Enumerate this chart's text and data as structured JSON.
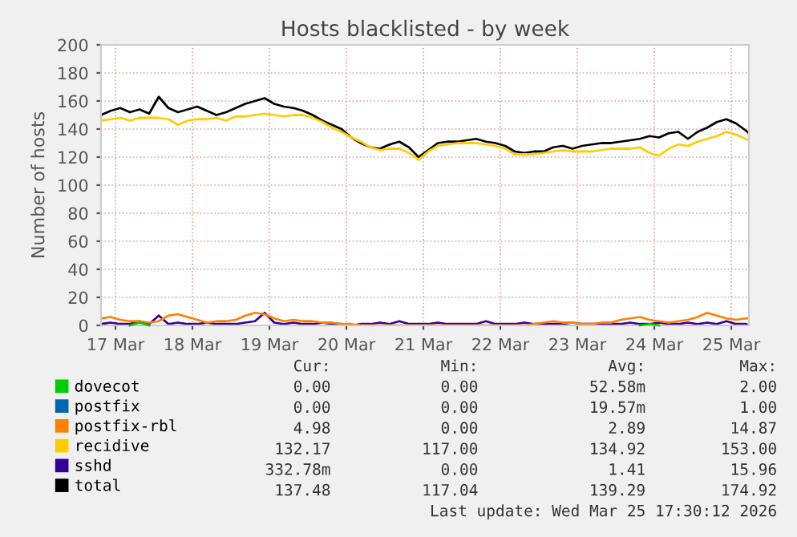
{
  "chart_data": {
    "type": "line",
    "title": "Hosts blacklisted - by week",
    "ylabel": "Number of hosts",
    "x": [
      "2026-03-17T07:30",
      "2026-03-17T10:30",
      "2026-03-17T13:30",
      "2026-03-17T16:30",
      "2026-03-17T19:30",
      "2026-03-17T22:30",
      "2026-03-18T01:30",
      "2026-03-18T04:30",
      "2026-03-18T07:30",
      "2026-03-18T10:30",
      "2026-03-18T13:30",
      "2026-03-18T16:30",
      "2026-03-18T19:30",
      "2026-03-18T22:30",
      "2026-03-19T01:30",
      "2026-03-19T04:30",
      "2026-03-19T07:30",
      "2026-03-19T10:30",
      "2026-03-19T13:30",
      "2026-03-19T16:30",
      "2026-03-19T19:30",
      "2026-03-19T22:30",
      "2026-03-20T01:30",
      "2026-03-20T04:30",
      "2026-03-20T07:30",
      "2026-03-20T10:30",
      "2026-03-20T13:30",
      "2026-03-20T16:30",
      "2026-03-20T19:30",
      "2026-03-20T22:30",
      "2026-03-21T01:30",
      "2026-03-21T04:30",
      "2026-03-21T07:30",
      "2026-03-21T10:30",
      "2026-03-21T13:30",
      "2026-03-21T16:30",
      "2026-03-21T19:30",
      "2026-03-21T22:30",
      "2026-03-22T01:30",
      "2026-03-22T04:30",
      "2026-03-22T07:30",
      "2026-03-22T10:30",
      "2026-03-22T13:30",
      "2026-03-22T16:30",
      "2026-03-22T19:30",
      "2026-03-22T22:30",
      "2026-03-23T01:30",
      "2026-03-23T04:30",
      "2026-03-23T07:30",
      "2026-03-23T10:30",
      "2026-03-23T13:30",
      "2026-03-23T16:30",
      "2026-03-23T19:30",
      "2026-03-23T22:30",
      "2026-03-24T01:30",
      "2026-03-24T04:30",
      "2026-03-24T07:30",
      "2026-03-24T10:30",
      "2026-03-24T13:30",
      "2026-03-24T16:30",
      "2026-03-24T19:30",
      "2026-03-24T22:30",
      "2026-03-25T01:30",
      "2026-03-25T04:30",
      "2026-03-25T07:30",
      "2026-03-25T10:30",
      "2026-03-25T13:30",
      "2026-03-25T16:30",
      "2026-03-25T17:30"
    ],
    "series": [
      {
        "name": "dovecot",
        "color": "#00cc00",
        "values": [
          null,
          null,
          null,
          0,
          2,
          0,
          null,
          null,
          null,
          null,
          null,
          null,
          null,
          null,
          null,
          null,
          null,
          null,
          null,
          null,
          null,
          null,
          null,
          null,
          null,
          null,
          null,
          null,
          null,
          null,
          null,
          null,
          null,
          null,
          null,
          null,
          null,
          null,
          null,
          null,
          null,
          null,
          null,
          null,
          null,
          null,
          null,
          null,
          null,
          null,
          null,
          null,
          null,
          null,
          null,
          null,
          0,
          1,
          0,
          null,
          null,
          null,
          null,
          null,
          null,
          null,
          null,
          null,
          null
        ]
      },
      {
        "name": "postfix",
        "color": "#0066b3",
        "values": [
          null,
          null,
          null,
          null,
          null,
          null,
          null,
          null,
          null,
          null,
          null,
          null,
          null,
          null,
          null,
          null,
          null,
          null,
          null,
          null,
          null,
          null,
          null,
          null,
          null,
          null,
          null,
          null,
          null,
          null,
          null,
          null,
          null,
          null,
          null,
          null,
          null,
          null,
          null,
          null,
          null,
          null,
          null,
          null,
          null,
          null,
          null,
          null,
          null,
          null,
          null,
          null,
          null,
          null,
          null,
          null,
          null,
          null,
          null,
          null,
          null,
          null,
          null,
          null,
          null,
          null,
          null,
          null,
          null
        ]
      },
      {
        "name": "postfix-rbl",
        "color": "#ff8000",
        "values": [
          5,
          6,
          4,
          3,
          3,
          2,
          3,
          7,
          8,
          6,
          4,
          2,
          3,
          3,
          4,
          7,
          9,
          8,
          5,
          3,
          4,
          3,
          3,
          2,
          2,
          1,
          1,
          0,
          0,
          0,
          0,
          0,
          0,
          0,
          0,
          0,
          0,
          0,
          0,
          0,
          0,
          0,
          0,
          0,
          0,
          1,
          2,
          3,
          2,
          2,
          1,
          1,
          2,
          2,
          4,
          5,
          6,
          4,
          3,
          2,
          3,
          4,
          6,
          9,
          7,
          5,
          4,
          5,
          5
        ]
      },
      {
        "name": "recidive",
        "color": "#ffcc00",
        "values": [
          146,
          147,
          148,
          146,
          148,
          148,
          148,
          147,
          143,
          146,
          147,
          147,
          148,
          146,
          149,
          149,
          150,
          151,
          150,
          149,
          150,
          150,
          148,
          145,
          141,
          138,
          134,
          131,
          127,
          125,
          126,
          126,
          123,
          118,
          124,
          128,
          129,
          130,
          130,
          130,
          129,
          128,
          126,
          122,
          122,
          122,
          123,
          124,
          125,
          124,
          124,
          124,
          125,
          126,
          126,
          126,
          127,
          123,
          121,
          126,
          129,
          128,
          131,
          133,
          135,
          138,
          136,
          133,
          132
        ]
      },
      {
        "name": "sshd",
        "color": "#330099",
        "values": [
          1,
          2,
          1,
          1,
          3,
          1,
          7,
          1,
          2,
          1,
          1,
          2,
          1,
          1,
          1,
          2,
          3,
          9,
          2,
          1,
          2,
          1,
          1,
          2,
          1,
          1,
          0,
          1,
          1,
          2,
          1,
          3,
          1,
          1,
          1,
          2,
          1,
          1,
          1,
          1,
          3,
          1,
          1,
          1,
          2,
          1,
          1,
          1,
          1,
          2,
          1,
          1,
          1,
          1,
          1,
          2,
          1,
          1,
          2,
          1,
          1,
          2,
          1,
          2,
          1,
          3,
          1,
          1,
          0
        ]
      },
      {
        "name": "total",
        "color": "#000000",
        "values": [
          150,
          153,
          155,
          152,
          154,
          151,
          163,
          155,
          152,
          154,
          156,
          153,
          150,
          152,
          155,
          158,
          160,
          162,
          158,
          156,
          155,
          153,
          150,
          146,
          143,
          140,
          134,
          130,
          127,
          126,
          129,
          131,
          127,
          120,
          125,
          130,
          131,
          131,
          132,
          133,
          131,
          130,
          128,
          124,
          123,
          124,
          124,
          127,
          128,
          126,
          128,
          129,
          130,
          130,
          131,
          132,
          133,
          135,
          134,
          137,
          138,
          133,
          138,
          141,
          145,
          147,
          144,
          139,
          137
        ]
      }
    ],
    "xlim": [
      "2026-03-17T07:30",
      "2026-03-25T17:30"
    ],
    "xticks": [
      {
        "value": "2026-03-17T12:00",
        "label": "17 Mar"
      },
      {
        "value": "2026-03-18T12:00",
        "label": "18 Mar"
      },
      {
        "value": "2026-03-19T12:00",
        "label": "19 Mar"
      },
      {
        "value": "2026-03-20T12:00",
        "label": "20 Mar"
      },
      {
        "value": "2026-03-21T12:00",
        "label": "21 Mar"
      },
      {
        "value": "2026-03-22T12:00",
        "label": "22 Mar"
      },
      {
        "value": "2026-03-23T12:00",
        "label": "23 Mar"
      },
      {
        "value": "2026-03-24T12:00",
        "label": "24 Mar"
      },
      {
        "value": "2026-03-25T12:00",
        "label": "25 Mar"
      }
    ],
    "ylim": [
      0,
      200
    ],
    "yticks": [
      0,
      20,
      40,
      60,
      80,
      100,
      120,
      140,
      160,
      180,
      200
    ],
    "grid": true,
    "legend": "bottom",
    "marker": "none",
    "line_style": "solid",
    "annotations": [
      "Cur:",
      "Min:",
      "Avg:",
      "Max:",
      "0.00",
      "0.00",
      "52.58m",
      "2.00",
      "0.00",
      "0.00",
      "19.57m",
      "1.00",
      "4.98",
      "0.00",
      "2.89",
      "14.87",
      "132.17",
      "117.00",
      "134.92",
      "153.00",
      "332.78m",
      "0.00",
      "1.41",
      "15.96",
      "137.48",
      "117.04",
      "139.29",
      "174.92",
      "Last update: Wed Mar 25 17:30:12 2026"
    ]
  }
}
